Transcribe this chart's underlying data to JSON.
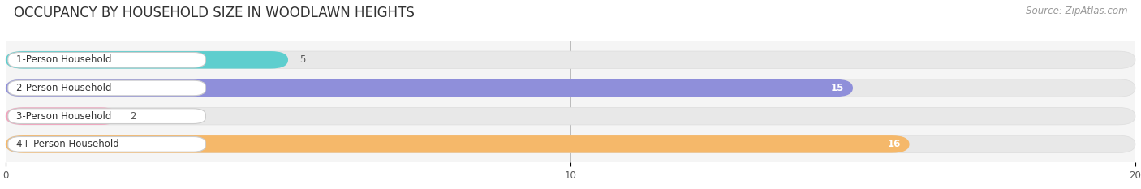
{
  "title": "OCCUPANCY BY HOUSEHOLD SIZE IN WOODLAWN HEIGHTS",
  "source": "Source: ZipAtlas.com",
  "categories": [
    "1-Person Household",
    "2-Person Household",
    "3-Person Household",
    "4+ Person Household"
  ],
  "values": [
    5,
    15,
    2,
    16
  ],
  "bar_colors": [
    "#5ecece",
    "#8f8fda",
    "#f4a0bc",
    "#f5b86a"
  ],
  "xlim": [
    0,
    20
  ],
  "xticks": [
    0,
    10,
    20
  ],
  "bar_height": 0.62,
  "background_color": "#ffffff",
  "plot_bg_color": "#f5f5f5",
  "full_bar_color": "#e8e8e8",
  "title_fontsize": 12,
  "source_fontsize": 8.5,
  "label_fontsize": 8.5,
  "value_fontsize": 8.5
}
